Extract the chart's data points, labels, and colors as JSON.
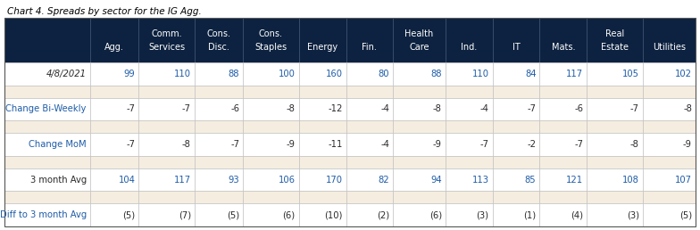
{
  "title": "Chart 4. Spreads by sector for the IG Agg.",
  "header_bg": "#0d2240",
  "header_fg": "#ffffff",
  "row_bg_white": "#ffffff",
  "row_bg_cream": "#f5ede0",
  "col_headers_line1": [
    "",
    "Comm.",
    "Cons.",
    "Cons.",
    "",
    "",
    "Health",
    "",
    "",
    "",
    "Real",
    ""
  ],
  "col_headers_line2": [
    "Agg.",
    "Services",
    "Disc.",
    "Staples",
    "Energy",
    "Fin.",
    "Care",
    "Ind.",
    "IT",
    "Mats.",
    "Estate",
    "Utilities"
  ],
  "row_labels": [
    "4/8/2021",
    "",
    "Change Bi-Weekly",
    "",
    "Change MoM",
    "",
    "3 month Avg",
    "",
    "Diff to 3 month Avg"
  ],
  "rows": [
    [
      "99",
      "110",
      "88",
      "100",
      "160",
      "80",
      "88",
      "110",
      "84",
      "117",
      "105",
      "102"
    ],
    [
      "",
      "",
      "",
      "",
      "",
      "",
      "",
      "",
      "",
      "",
      "",
      ""
    ],
    [
      "-7",
      "-7",
      "-6",
      "-8",
      "-12",
      "-4",
      "-8",
      "-4",
      "-7",
      "-6",
      "-7",
      "-8"
    ],
    [
      "",
      "",
      "",
      "",
      "",
      "",
      "",
      "",
      "",
      "",
      "",
      ""
    ],
    [
      "-7",
      "-8",
      "-7",
      "-9",
      "-11",
      "-4",
      "-9",
      "-7",
      "-2",
      "-7",
      "-8",
      "-9"
    ],
    [
      "",
      "",
      "",
      "",
      "",
      "",
      "",
      "",
      "",
      "",
      "",
      ""
    ],
    [
      "104",
      "117",
      "93",
      "106",
      "170",
      "82",
      "94",
      "113",
      "85",
      "121",
      "108",
      "107"
    ],
    [
      "",
      "",
      "",
      "",
      "",
      "",
      "",
      "",
      "",
      "",
      "",
      ""
    ],
    [
      "(5)",
      "(7)",
      "(5)",
      "(6)",
      "(10)",
      "(2)",
      "(6)",
      "(3)",
      "(1)",
      "(4)",
      "(3)",
      "(5)"
    ]
  ],
  "row_bgs": [
    "#ffffff",
    "#f5ede0",
    "#ffffff",
    "#f5ede0",
    "#ffffff",
    "#f5ede0",
    "#ffffff",
    "#f5ede0",
    "#ffffff"
  ],
  "blue_fg": "#1e5ca8",
  "dark_fg": "#2a2a2a",
  "blue_rows": [
    0,
    6
  ],
  "label_blue_rows": [
    2,
    4,
    8
  ],
  "label_dark_rows": [
    0,
    6
  ],
  "col_props": [
    0.118,
    0.067,
    0.077,
    0.067,
    0.077,
    0.065,
    0.065,
    0.072,
    0.065,
    0.065,
    0.065,
    0.077,
    0.073
  ]
}
